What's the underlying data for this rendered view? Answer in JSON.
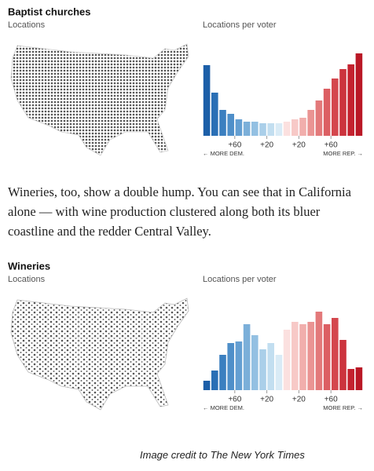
{
  "chart_data": [
    {
      "type": "histogram",
      "title": "Baptist churches",
      "map_label": "Locations",
      "chart_label": "Locations per voter",
      "bins": [
        -100,
        -90,
        -80,
        -70,
        -60,
        -50,
        -40,
        -30,
        -20,
        -10,
        0,
        10,
        20,
        30,
        40,
        50,
        60,
        70,
        80,
        90,
        100
      ],
      "values": [
        90,
        55,
        33,
        28,
        21,
        18,
        18,
        16,
        16,
        16,
        18,
        21,
        23,
        33,
        45,
        60,
        73,
        85,
        91,
        105
      ],
      "colors": [
        "#1c5fa8",
        "#2a6fb5",
        "#3b7fc0",
        "#4f8fc9",
        "#649fd2",
        "#7bafd9",
        "#93c0e2",
        "#aacfe9",
        "#c2def0",
        "#d9ebf6",
        "#fbe0df",
        "#f7c9c7",
        "#f1aeac",
        "#ea9493",
        "#e3797a",
        "#dc5f63",
        "#d4474e",
        "#cc333d",
        "#c4222f",
        "#ba1826"
      ],
      "xlim": [
        -100,
        100
      ],
      "ylim": [
        0,
        110
      ],
      "xticks": [
        {
          "value": -60,
          "label": "+60"
        },
        {
          "value": -20,
          "label": "+20"
        },
        {
          "value": 20,
          "label": "+20"
        },
        {
          "value": 60,
          "label": "+60"
        }
      ],
      "x_note_left": "← MORE DEM.",
      "x_note_right": "MORE REP. →"
    },
    {
      "type": "histogram",
      "title": "Wineries",
      "map_label": "Locations",
      "chart_label": "Locations per voter",
      "bins": [
        -100,
        -90,
        -80,
        -70,
        -60,
        -50,
        -40,
        -30,
        -20,
        -10,
        0,
        10,
        20,
        30,
        40,
        50,
        60,
        70,
        80,
        90,
        100
      ],
      "values": [
        12,
        25,
        45,
        60,
        62,
        84,
        70,
        52,
        60,
        45,
        77,
        87,
        84,
        87,
        100,
        84,
        92,
        64,
        27,
        29
      ],
      "colors": [
        "#1c5fa8",
        "#2a6fb5",
        "#3b7fc0",
        "#4f8fc9",
        "#649fd2",
        "#7bafd9",
        "#93c0e2",
        "#aacfe9",
        "#c2def0",
        "#d9ebf6",
        "#fbe0df",
        "#f7c9c7",
        "#f1aeac",
        "#ea9493",
        "#e3797a",
        "#dc5f63",
        "#d4474e",
        "#cc333d",
        "#c4222f",
        "#ba1826"
      ],
      "xlim": [
        -100,
        100
      ],
      "ylim": [
        0,
        110
      ],
      "xticks": [
        {
          "value": -60,
          "label": "+60"
        },
        {
          "value": -20,
          "label": "+20"
        },
        {
          "value": 20,
          "label": "+20"
        },
        {
          "value": 60,
          "label": "+60"
        }
      ],
      "x_note_left": "← MORE DEM.",
      "x_note_right": "MORE REP. →"
    }
  ],
  "paragraph": "Wineries, too, show a double hump. You can see that in California alone — with wine production clustered along both its bluer coastline and the redder Central Valley.",
  "credit": "Image credit to The New York Times"
}
